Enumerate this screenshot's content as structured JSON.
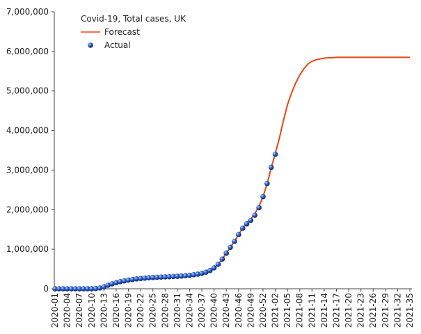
{
  "chart_data": {
    "type": "line",
    "legend_title": "Covid-19, Total cases, UK",
    "legend_position": "top-left",
    "grid": false,
    "categories": [
      "2020-01",
      null,
      null,
      "2020-04",
      null,
      null,
      "2020-07",
      null,
      null,
      "2020-10",
      null,
      null,
      "2020-13",
      null,
      null,
      "2020-16",
      null,
      null,
      "2020-19",
      null,
      null,
      "2020-22",
      null,
      null,
      "2020-25",
      null,
      null,
      "2020-28",
      null,
      null,
      "2020-31",
      null,
      null,
      "2020-34",
      null,
      null,
      "2020-37",
      null,
      null,
      "2020-40",
      null,
      null,
      "2020-43",
      null,
      null,
      "2020-46",
      null,
      null,
      "2020-49",
      null,
      null,
      "2020-52",
      null,
      null,
      "2021-02",
      null,
      null,
      "2021-05",
      null,
      null,
      "2021-08",
      null,
      null,
      "2021-11",
      null,
      null,
      "2021-14",
      null,
      null,
      "2021-17",
      null,
      null,
      "2021-20",
      null,
      null,
      "2021-23",
      null,
      null,
      "2021-26",
      null,
      null,
      "2021-29",
      null,
      null,
      "2021-32",
      null,
      null,
      "2021-35"
    ],
    "series": [
      {
        "name": "Forecast",
        "color": "#ee4411",
        "marker": "line",
        "values": [
          0,
          0,
          0,
          0,
          0,
          0,
          0,
          0,
          100,
          500,
          5000,
          20000,
          50000,
          90000,
          125000,
          155000,
          180000,
          200000,
          220000,
          235000,
          250000,
          260000,
          270000,
          278000,
          285000,
          290000,
          295000,
          300000,
          305000,
          310000,
          315000,
          322000,
          330000,
          340000,
          355000,
          370000,
          390000,
          420000,
          460000,
          530000,
          620000,
          750000,
          900000,
          1050000,
          1200000,
          1370000,
          1530000,
          1650000,
          1760000,
          1900000,
          2080000,
          2330000,
          2650000,
          3050000,
          3420000,
          3800000,
          4250000,
          4650000,
          4950000,
          5200000,
          5400000,
          5560000,
          5680000,
          5750000,
          5790000,
          5810000,
          5830000,
          5840000,
          5840000,
          5850000,
          5850000,
          5850000,
          5850000,
          5850000,
          5850000,
          5850000,
          5850000,
          5850000,
          5850000,
          5850000,
          5850000,
          5850000,
          5850000,
          5850000,
          5850000,
          5850000,
          5850000,
          5850000
        ]
      },
      {
        "name": "Actual",
        "color": "#2255bb",
        "marker": "sphere",
        "values": [
          0,
          0,
          0,
          0,
          0,
          0,
          0,
          0,
          100,
          300,
          5000,
          20000,
          50000,
          90000,
          125000,
          155000,
          180000,
          200000,
          220000,
          235000,
          250000,
          260000,
          270000,
          278000,
          285000,
          290000,
          295000,
          300000,
          305000,
          310000,
          315000,
          322000,
          330000,
          340000,
          355000,
          370000,
          390000,
          420000,
          460000,
          530000,
          620000,
          750000,
          900000,
          1050000,
          1200000,
          1370000,
          1530000,
          1640000,
          1730000,
          1860000,
          2050000,
          2330000,
          2660000,
          3070000,
          3400000,
          null,
          null,
          null,
          null,
          null,
          null,
          null,
          null,
          null,
          null,
          null,
          null,
          null,
          null,
          null,
          null,
          null,
          null,
          null,
          null,
          null,
          null,
          null,
          null,
          null,
          null,
          null,
          null,
          null,
          null,
          null,
          null,
          null
        ]
      }
    ],
    "ylim": [
      0,
      7000000
    ],
    "yticks": [
      {
        "value": 0,
        "label": "0"
      },
      {
        "value": 1000000,
        "label": "1,000,000"
      },
      {
        "value": 2000000,
        "label": "2,000,000"
      },
      {
        "value": 3000000,
        "label": "3,000,000"
      },
      {
        "value": 4000000,
        "label": "4,000,000"
      },
      {
        "value": 5000000,
        "label": "5,000,000"
      },
      {
        "value": 6000000,
        "label": "6,000,000"
      },
      {
        "value": 7000000,
        "label": "7,000,000"
      }
    ]
  }
}
